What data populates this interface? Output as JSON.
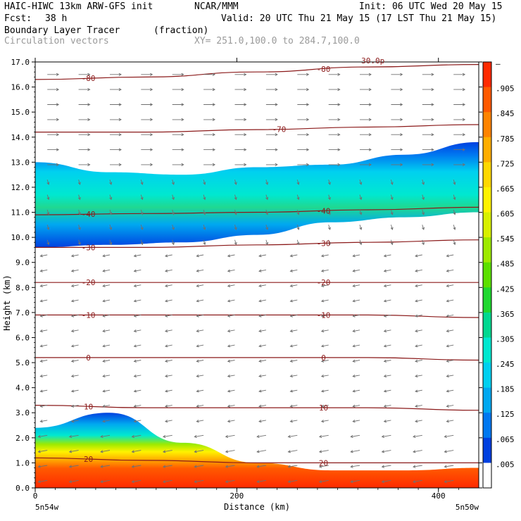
{
  "header": {
    "model": "HAIC-HIWC 13km ARW-GFS init",
    "org": "NCAR/MMM",
    "init": "Init: 06 UTC Wed 20 May 15",
    "fcst_label": "Fcst:",
    "fcst_value": "38 h",
    "valid": "Valid: 20 UTC Thu 21 May 15 (17 LST Thu 21 May 15)",
    "field": "Boundary Layer Tracer",
    "field_units": "(fraction)",
    "vectors": "Circulation vectors",
    "xy_range": "XY= 251.0,100.0 to 284.7,100.0"
  },
  "chart_data": {
    "type": "heatmap",
    "ylabel": "Height (km)",
    "xlabel": "Distance (km)",
    "xlim": [
      0,
      440
    ],
    "ylim": [
      0,
      17
    ],
    "yticks": [
      "0.0",
      "1.0",
      "2.0",
      "3.0",
      "4.0",
      "5.0",
      "6.0",
      "7.0",
      "8.0",
      "9.0",
      "10.0",
      "11.0",
      "12.0",
      "13.0",
      "14.0",
      "15.0",
      "16.0",
      "17.0"
    ],
    "xticks": [
      {
        "value": 0,
        "label": "0"
      },
      {
        "value": 200,
        "label": "200"
      },
      {
        "value": 400,
        "label": "400"
      }
    ],
    "x_end_labels": {
      "left": "5n54w",
      "right": "5n50w"
    },
    "colorbar": {
      "labels": [
        "–",
        ".905",
        ".845",
        ".785",
        ".725",
        ".665",
        ".605",
        ".545",
        ".485",
        ".425",
        ".365",
        ".305",
        ".245",
        ".185",
        ".125",
        ".065",
        ".005"
      ],
      "colors": [
        "#ff2a00",
        "#ff5a00",
        "#ff8400",
        "#ffae00",
        "#ffd800",
        "#fff200",
        "#d8f000",
        "#9eea00",
        "#5ce000",
        "#20d830",
        "#00d890",
        "#00e8d0",
        "#00d0f0",
        "#00a8f0",
        "#0078f0",
        "#0040e0",
        "#ffffff"
      ]
    },
    "temperature_contours": [
      {
        "value": -80,
        "y": [
          16.3,
          16.4,
          16.6,
          16.8,
          16.9
        ],
        "labels": [
          "-80",
          "-80"
        ]
      },
      {
        "value": -70,
        "y": [
          14.2,
          14.2,
          14.3,
          14.4,
          14.5
        ],
        "labels": [
          "-70"
        ]
      },
      {
        "value": -40,
        "y": [
          10.9,
          10.95,
          11.0,
          11.1,
          11.2
        ],
        "labels": [
          "-40",
          "-40"
        ]
      },
      {
        "value": -30,
        "y": [
          9.6,
          9.6,
          9.7,
          9.8,
          9.9
        ],
        "labels": [
          "-30",
          "-30"
        ]
      },
      {
        "value": -20,
        "y": [
          8.2,
          8.2,
          8.2,
          8.2,
          8.2
        ],
        "labels": [
          "-20",
          "-20"
        ]
      },
      {
        "value": -10,
        "y": [
          6.9,
          6.9,
          6.9,
          6.9,
          6.8
        ],
        "labels": [
          "-10",
          "-10"
        ]
      },
      {
        "value": 0,
        "y": [
          5.2,
          5.2,
          5.2,
          5.2,
          5.1
        ],
        "labels": [
          "0",
          "0"
        ]
      },
      {
        "value": 10,
        "y": [
          3.3,
          3.2,
          3.2,
          3.2,
          3.1
        ],
        "labels": [
          "10",
          "10"
        ]
      },
      {
        "value": 20,
        "y": [
          1.2,
          1.1,
          1.0,
          1.0,
          1.0
        ],
        "labels": [
          "20",
          "20"
        ]
      }
    ],
    "misc_contour_label": "30.0p",
    "tracer_layers": {
      "upper_bottom_km": [
        9.6,
        9.7,
        9.8,
        10.1,
        10.6,
        10.8,
        11.0
      ],
      "upper_top_km": [
        13.0,
        12.6,
        12.5,
        12.8,
        12.9,
        13.3,
        13.8
      ],
      "boundary_top_km": [
        2.4,
        3.0,
        1.8,
        1.0,
        0.7,
        0.7,
        0.8
      ]
    }
  }
}
